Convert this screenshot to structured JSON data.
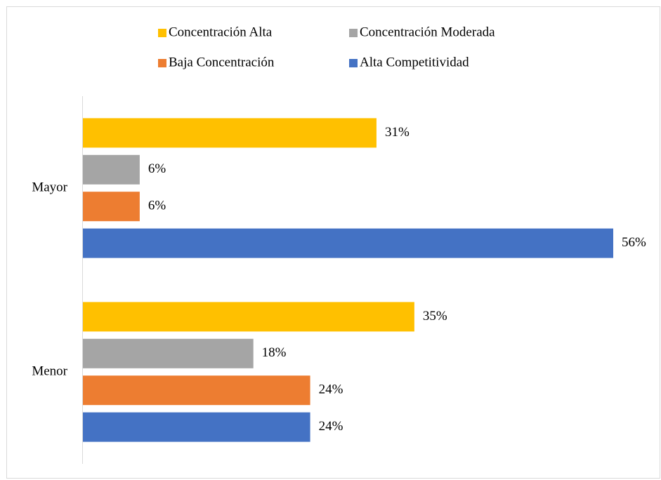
{
  "chart_data": {
    "type": "bar",
    "orientation": "horizontal",
    "categories": [
      "Mayor",
      "Menor"
    ],
    "series": [
      {
        "name": "Concentración Alta",
        "color": "#FFC000",
        "values": [
          31,
          35
        ],
        "value_labels": [
          "31%",
          "35%"
        ]
      },
      {
        "name": "Concentración Moderada",
        "color": "#A5A5A5",
        "values": [
          6,
          18
        ],
        "value_labels": [
          "6%",
          "18%"
        ]
      },
      {
        "name": "Baja Concentración",
        "color": "#ED7D31",
        "values": [
          6,
          24
        ],
        "value_labels": [
          "6%",
          "24%"
        ]
      },
      {
        "name": "Alta Competitividad",
        "color": "#4472C4",
        "values": [
          56,
          24
        ],
        "value_labels": [
          "56%",
          "24%"
        ]
      }
    ],
    "legend": "top"
  }
}
